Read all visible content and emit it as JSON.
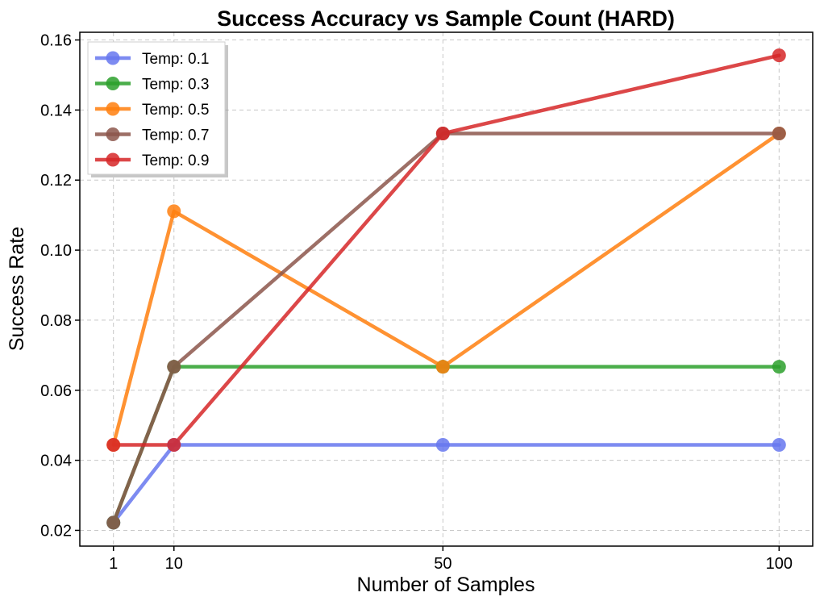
{
  "chart_data": {
    "type": "line",
    "title": "Success Accuracy vs Sample Count (HARD)",
    "xlabel": "Number of Samples",
    "ylabel": "Success Rate",
    "x": [
      1,
      10,
      50,
      100
    ],
    "x_tick_labels": [
      "1",
      "10",
      "50",
      "100"
    ],
    "xlim": [
      -4,
      105
    ],
    "ylim": [
      0.0155,
      0.1622
    ],
    "y_ticks": [
      0.02,
      0.04,
      0.06,
      0.08,
      0.1,
      0.12,
      0.14,
      0.16
    ],
    "y_tick_labels": [
      "0.02",
      "0.04",
      "0.06",
      "0.08",
      "0.10",
      "0.12",
      "0.14",
      "0.16"
    ],
    "grid": true,
    "legend_position": "top-left",
    "series": [
      {
        "name": "Temp: 0.1",
        "color": "#6677ee",
        "values": [
          0.0222,
          0.0444,
          0.0444,
          0.0444
        ]
      },
      {
        "name": "Temp: 0.3",
        "color": "#2ca02c",
        "values": [
          0.0222,
          0.0667,
          0.0667,
          0.0667
        ]
      },
      {
        "name": "Temp: 0.5",
        "color": "#ff7f0e",
        "values": [
          0.0444,
          0.1111,
          0.0667,
          0.1333
        ]
      },
      {
        "name": "Temp: 0.7",
        "color": "#8c564b",
        "values": [
          0.0222,
          0.0667,
          0.1333,
          0.1333
        ]
      },
      {
        "name": "Temp: 0.9",
        "color": "#d62728",
        "values": [
          0.0444,
          0.0444,
          0.1333,
          0.1556
        ]
      }
    ]
  }
}
